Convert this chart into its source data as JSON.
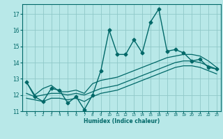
{
  "xlabel": "Humidex (Indice chaleur)",
  "bg_color": "#b8e8e8",
  "grid_color": "#90c8c8",
  "line_color": "#006868",
  "marker": "D",
  "markersize": 2.5,
  "linewidth": 1.0,
  "xlim": [
    -0.5,
    23.5
  ],
  "ylim": [
    11,
    17.6
  ],
  "yticks": [
    11,
    12,
    13,
    14,
    15,
    16,
    17
  ],
  "xticks": [
    0,
    1,
    2,
    3,
    4,
    5,
    6,
    7,
    8,
    9,
    10,
    11,
    12,
    13,
    14,
    15,
    16,
    17,
    18,
    19,
    20,
    21,
    22,
    23
  ],
  "series": [
    {
      "has_markers": true,
      "x": [
        0,
        1,
        2,
        3,
        4,
        5,
        6,
        7,
        8,
        9,
        10,
        11,
        12,
        13,
        14,
        15,
        16,
        17,
        18,
        19,
        20,
        21,
        22,
        23
      ],
      "y": [
        12.8,
        11.9,
        11.6,
        12.4,
        12.3,
        11.5,
        11.9,
        11.1,
        12.0,
        13.5,
        16.0,
        14.5,
        14.5,
        15.4,
        14.6,
        16.5,
        17.3,
        14.7,
        14.8,
        14.6,
        14.1,
        14.2,
        13.7,
        13.6
      ]
    },
    {
      "has_markers": false,
      "x": [
        0,
        1,
        2,
        3,
        4,
        5,
        6,
        7,
        8,
        9,
        10,
        11,
        12,
        13,
        14,
        15,
        16,
        17,
        18,
        19,
        20,
        21,
        22,
        23
      ],
      "y": [
        12.8,
        12.0,
        12.4,
        12.6,
        12.2,
        12.2,
        12.3,
        12.1,
        12.7,
        12.9,
        13.0,
        13.1,
        13.3,
        13.5,
        13.7,
        13.9,
        14.1,
        14.3,
        14.4,
        14.5,
        14.5,
        14.4,
        14.1,
        13.7
      ]
    },
    {
      "has_markers": false,
      "x": [
        0,
        1,
        2,
        3,
        4,
        5,
        6,
        7,
        8,
        9,
        10,
        11,
        12,
        13,
        14,
        15,
        16,
        17,
        18,
        19,
        20,
        21,
        22,
        23
      ],
      "y": [
        12.1,
        11.9,
        12.0,
        12.1,
        12.1,
        12.0,
        12.1,
        12.0,
        12.2,
        12.4,
        12.5,
        12.6,
        12.8,
        13.0,
        13.2,
        13.4,
        13.6,
        13.8,
        14.0,
        14.1,
        14.1,
        14.0,
        13.8,
        13.6
      ]
    },
    {
      "has_markers": false,
      "x": [
        0,
        1,
        2,
        3,
        4,
        5,
        6,
        7,
        8,
        9,
        10,
        11,
        12,
        13,
        14,
        15,
        16,
        17,
        18,
        19,
        20,
        21,
        22,
        23
      ],
      "y": [
        11.8,
        11.7,
        11.6,
        11.8,
        11.8,
        11.7,
        11.8,
        11.6,
        11.9,
        12.1,
        12.2,
        12.3,
        12.5,
        12.7,
        12.9,
        13.1,
        13.3,
        13.5,
        13.7,
        13.8,
        13.8,
        13.7,
        13.5,
        13.3
      ]
    }
  ]
}
